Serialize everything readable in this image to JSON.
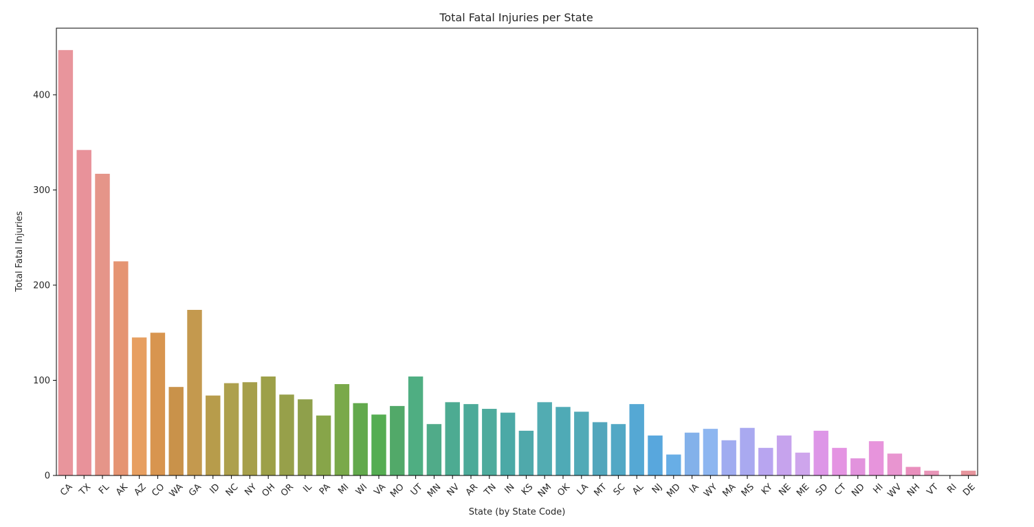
{
  "chart_data": {
    "type": "bar",
    "title": "Total Fatal Injuries per State",
    "xlabel": "State (by State Code)",
    "ylabel": "Total Fatal Injuries",
    "ylim": [
      0,
      470
    ],
    "yticks": [
      0,
      100,
      200,
      300,
      400
    ],
    "grid": false,
    "legend": "none",
    "categories": [
      "CA",
      "TX",
      "FL",
      "AK",
      "AZ",
      "CO",
      "WA",
      "GA",
      "ID",
      "NC",
      "NY",
      "OH",
      "OR",
      "IL",
      "PA",
      "MI",
      "WI",
      "VA",
      "MO",
      "UT",
      "MN",
      "NV",
      "AR",
      "TN",
      "IN",
      "KS",
      "NM",
      "OK",
      "LA",
      "MT",
      "SC",
      "AL",
      "NJ",
      "MD",
      "IA",
      "WY",
      "MA",
      "MS",
      "KY",
      "NE",
      "ME",
      "SD",
      "CT",
      "ND",
      "HI",
      "WV",
      "NH",
      "VT",
      "RI",
      "DE"
    ],
    "values": [
      447,
      342,
      317,
      225,
      145,
      150,
      93,
      174,
      84,
      97,
      98,
      104,
      85,
      80,
      63,
      96,
      76,
      64,
      73,
      104,
      54,
      77,
      75,
      70,
      66,
      47,
      77,
      72,
      67,
      56,
      54,
      75,
      42,
      22,
      45,
      49,
      37,
      50,
      29,
      42,
      24,
      47,
      29,
      18,
      36,
      23,
      9,
      5,
      0,
      5
    ],
    "colors": [
      "#e8959c",
      "#e8929a",
      "#e59589",
      "#e59472",
      "#e79f61",
      "#d8954f",
      "#c9924a",
      "#c4994e",
      "#b79c4b",
      "#ada04d",
      "#a69f4b",
      "#9da048",
      "#97a04a",
      "#8fa04b",
      "#87a549",
      "#7aa94a",
      "#62a94c",
      "#55ad52",
      "#52a969",
      "#4fae82",
      "#50ab89",
      "#4dab92",
      "#4caa99",
      "#4eab9d",
      "#4ba9a6",
      "#4fa9ab",
      "#52acb2",
      "#4faab6",
      "#52aab7",
      "#52a6bc",
      "#52a8c5",
      "#55a8d4",
      "#58a7dd",
      "#68aee6",
      "#83b1ea",
      "#8db6f0",
      "#a0acf0",
      "#a9a9f0",
      "#b8a5f0",
      "#c6a3ed",
      "#cea5ec",
      "#dd96e7",
      "#e494e2",
      "#e293dd",
      "#e794dc",
      "#e895d0",
      "#e98fbd",
      "#e895b8",
      "#e798a8",
      "#e7959d"
    ]
  }
}
